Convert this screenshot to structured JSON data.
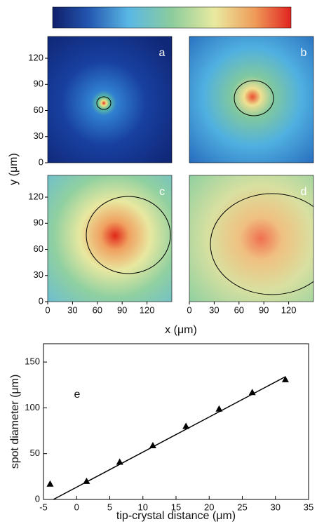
{
  "chart_data": [
    {
      "type": "heatmap",
      "panels": [
        "a",
        "b",
        "c",
        "d"
      ],
      "xlabel": "x (μm)",
      "ylabel": "y (μm)",
      "xlim": [
        0,
        150
      ],
      "ylim": [
        0,
        145
      ],
      "xticks": [
        0,
        30,
        60,
        90,
        120
      ],
      "yticks": [
        0,
        30,
        60,
        90,
        120
      ]
    },
    {
      "type": "scatter",
      "label": "e",
      "xlabel": "tip-crystal distance (μm)",
      "ylabel": "spot diameter (μm)",
      "x": [
        -4,
        1.5,
        6.5,
        11.5,
        16.5,
        21.5,
        26.5,
        31.5
      ],
      "values": [
        17,
        20,
        41,
        59,
        80,
        99,
        117,
        131
      ],
      "fit": {
        "x": [
          -3.5,
          31.5
        ],
        "values": [
          0,
          134
        ]
      },
      "xlim": [
        -5,
        35
      ],
      "ylim": [
        0,
        170
      ],
      "xticks": [
        -5,
        0,
        5,
        10,
        15,
        20,
        25,
        30,
        35
      ],
      "yticks": [
        0,
        50,
        100,
        150
      ]
    }
  ]
}
